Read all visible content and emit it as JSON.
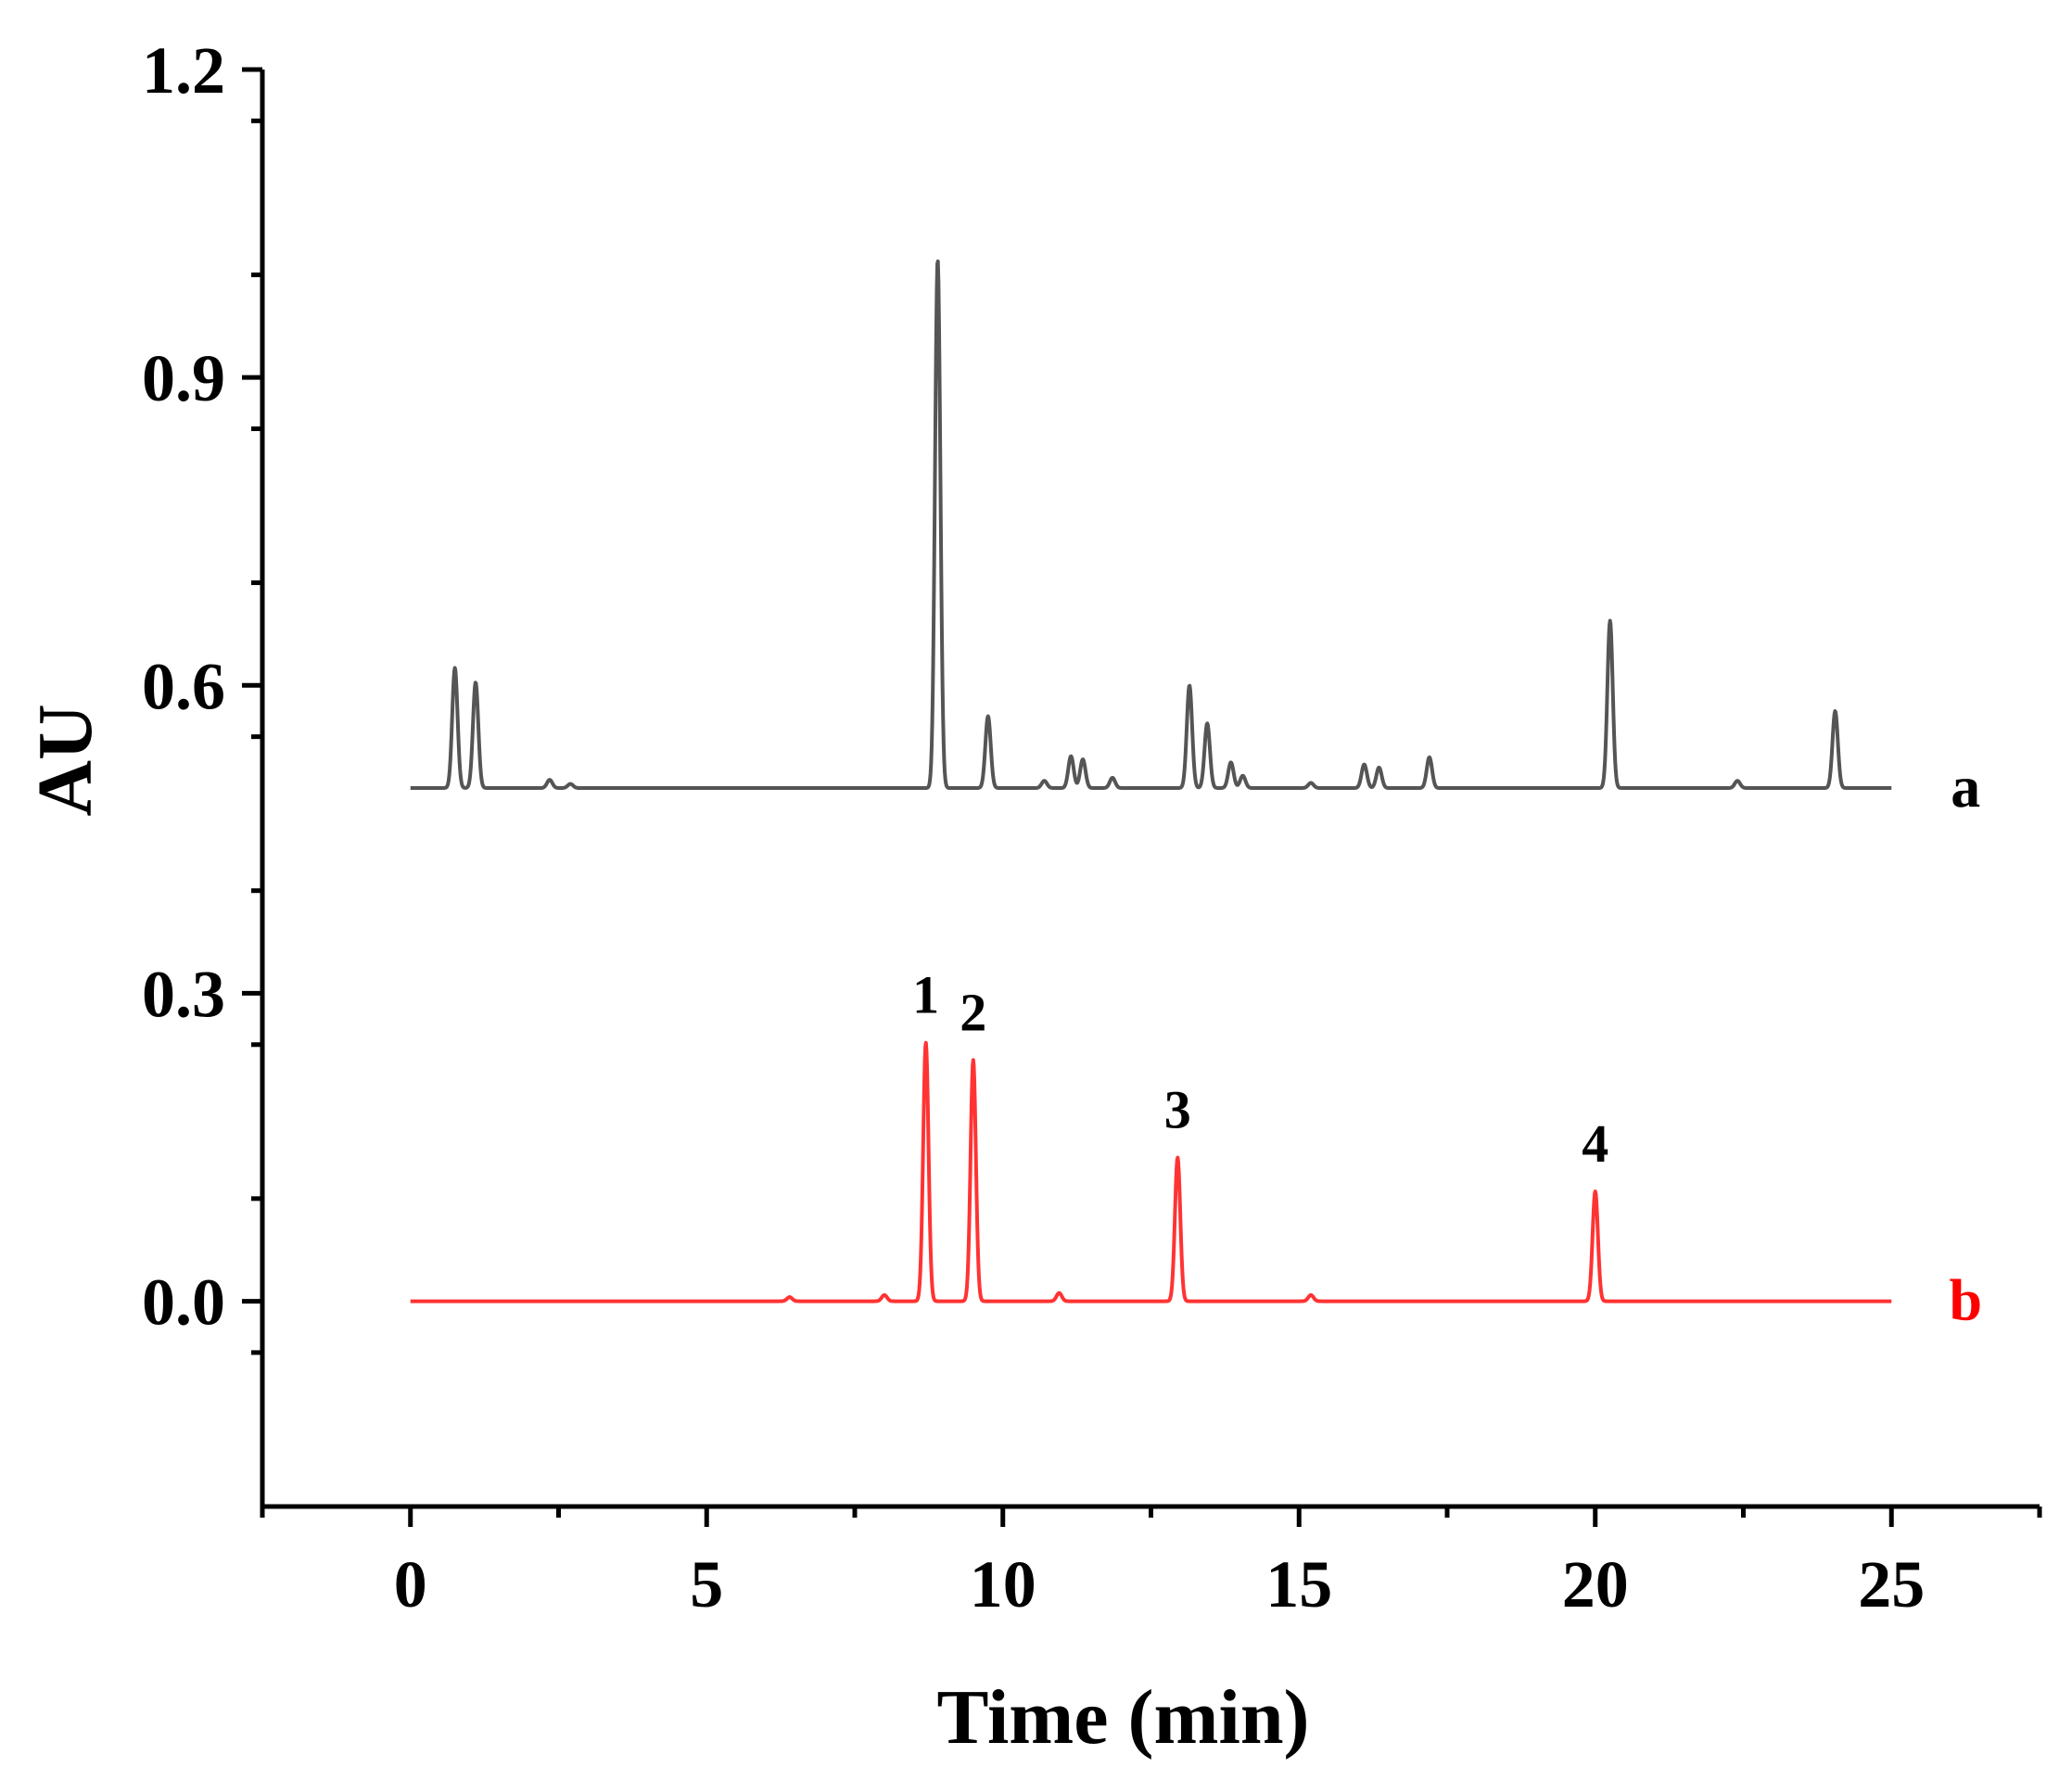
{
  "chart_data": {
    "type": "line",
    "title": "",
    "xlabel": "Time (min)",
    "ylabel": "AU",
    "xlim": [
      -2.5,
      27.5
    ],
    "ylim": [
      -0.2,
      1.2
    ],
    "xticks": [
      0,
      5,
      10,
      15,
      20,
      25
    ],
    "xtick_labels": [
      "0",
      "5",
      "10",
      "15",
      "20",
      "25"
    ],
    "yticks": [
      0.0,
      0.3,
      0.6,
      0.9,
      1.2
    ],
    "ytick_labels": [
      "0.0",
      "0.3",
      "0.6",
      "0.9",
      "1.2"
    ],
    "grid": false,
    "series": [
      {
        "name": "a",
        "color": "#555555",
        "baseline": 0.5,
        "x_range": [
          0,
          25
        ],
        "peaks": [
          {
            "x": 0.75,
            "y": 0.617
          },
          {
            "x": 1.1,
            "y": 0.603
          },
          {
            "x": 2.35,
            "y": 0.508
          },
          {
            "x": 2.7,
            "y": 0.504
          },
          {
            "x": 8.9,
            "y": 1.015
          },
          {
            "x": 9.75,
            "y": 0.57
          },
          {
            "x": 10.7,
            "y": 0.507
          },
          {
            "x": 11.15,
            "y": 0.531
          },
          {
            "x": 11.35,
            "y": 0.528
          },
          {
            "x": 11.85,
            "y": 0.51
          },
          {
            "x": 13.15,
            "y": 0.6
          },
          {
            "x": 13.45,
            "y": 0.563
          },
          {
            "x": 13.85,
            "y": 0.525
          },
          {
            "x": 14.05,
            "y": 0.512
          },
          {
            "x": 15.2,
            "y": 0.505
          },
          {
            "x": 16.1,
            "y": 0.523
          },
          {
            "x": 16.35,
            "y": 0.52
          },
          {
            "x": 17.2,
            "y": 0.53
          },
          {
            "x": 20.25,
            "y": 0.663
          },
          {
            "x": 22.4,
            "y": 0.507
          },
          {
            "x": 24.05,
            "y": 0.575
          }
        ]
      },
      {
        "name": "b",
        "color": "#ff3333",
        "baseline": 0.0,
        "x_range": [
          0,
          25
        ],
        "peaks": [
          {
            "x": 6.4,
            "y": 0.004
          },
          {
            "x": 8.0,
            "y": 0.006
          },
          {
            "x": 8.7,
            "y": 0.252
          },
          {
            "x": 9.5,
            "y": 0.235
          },
          {
            "x": 10.95,
            "y": 0.008
          },
          {
            "x": 12.95,
            "y": 0.14
          },
          {
            "x": 15.2,
            "y": 0.006
          },
          {
            "x": 20.0,
            "y": 0.107
          }
        ]
      }
    ],
    "series_labels": [
      {
        "text": "a",
        "color": "#000000"
      },
      {
        "text": "b",
        "color": "#ff0000"
      }
    ],
    "annotations": [
      {
        "text": "1",
        "x": 8.7,
        "y": 0.252
      },
      {
        "text": "2",
        "x": 9.5,
        "y": 0.235
      },
      {
        "text": "3",
        "x": 12.95,
        "y": 0.14
      },
      {
        "text": "4",
        "x": 20.0,
        "y": 0.107
      }
    ]
  }
}
